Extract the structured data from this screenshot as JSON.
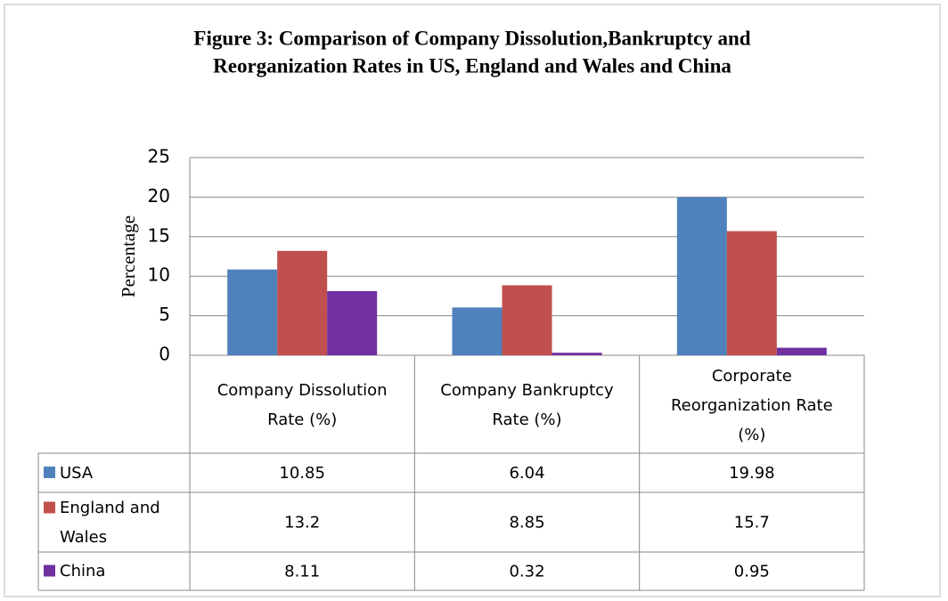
{
  "chart_data": {
    "type": "bar",
    "title": "Figure 3: Comparison of Company Dissolution,Bankruptcy and Reorganization Rates in US, England and Wales and China",
    "title_lines": [
      "Figure 3: Comparison of Company Dissolution,Bankruptcy and",
      "Reorganization Rates in US, England and Wales and China"
    ],
    "y_label": "Percentage",
    "categories": [
      "Company Dissolution Rate (%)",
      "Company Bankruptcy Rate (%)",
      "Corporate Reorganization Rate (%)"
    ],
    "series": [
      {
        "name": "USA",
        "color": "#4f81bd",
        "values": [
          10.85,
          6.04,
          19.98
        ]
      },
      {
        "name": "England and Wales",
        "color": "#c0504d",
        "values": [
          13.2,
          8.85,
          15.7
        ]
      },
      {
        "name": "China",
        "color": "#7030a0",
        "values": [
          8.11,
          0.32,
          0.95
        ]
      }
    ],
    "ylim": [
      0,
      25
    ],
    "yticks": [
      0,
      5,
      10,
      15,
      20,
      25
    ],
    "grid": true,
    "data_table": true
  }
}
